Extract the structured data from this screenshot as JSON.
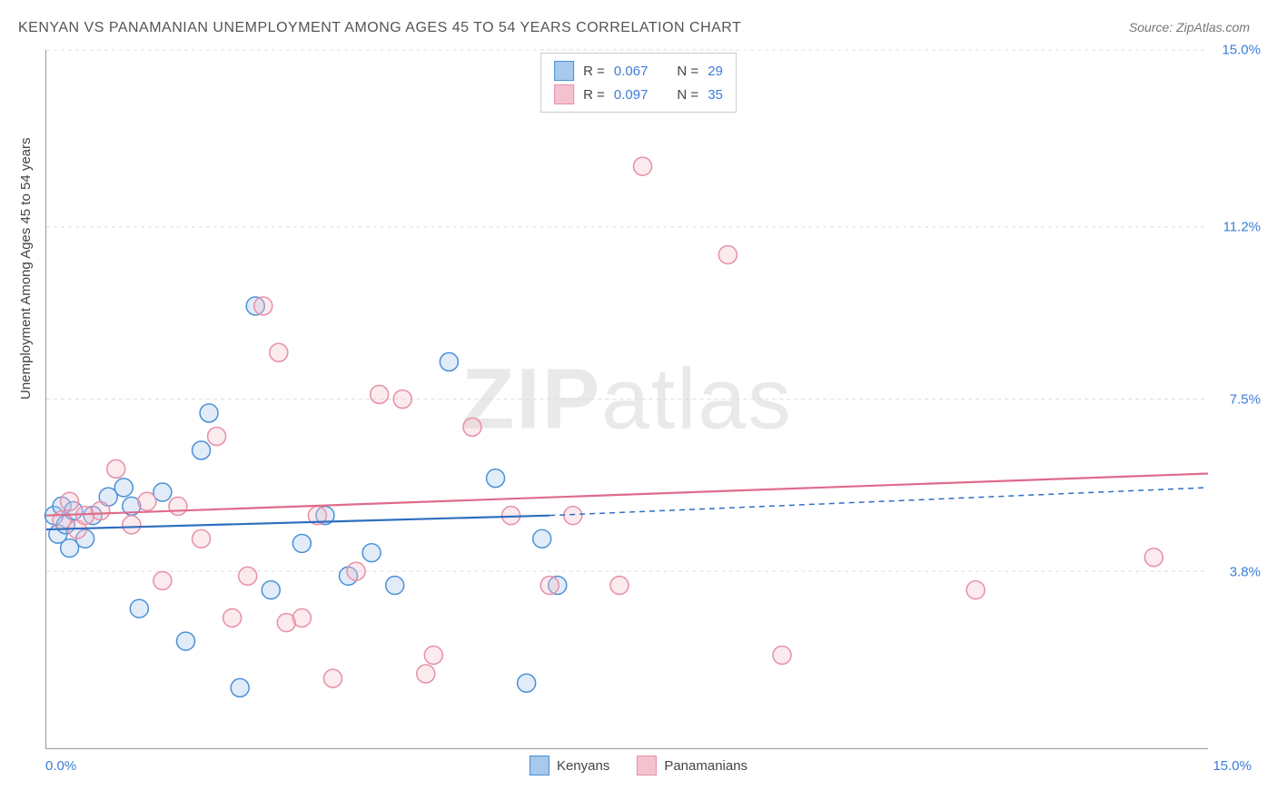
{
  "title": "KENYAN VS PANAMANIAN UNEMPLOYMENT AMONG AGES 45 TO 54 YEARS CORRELATION CHART",
  "source": "Source: ZipAtlas.com",
  "watermark_bold": "ZIP",
  "watermark_light": "atlas",
  "y_axis_label": "Unemployment Among Ages 45 to 54 years",
  "chart": {
    "type": "scatter",
    "xlim": [
      0,
      15
    ],
    "ylim": [
      0,
      15
    ],
    "x_ticks": {
      "min_label": "0.0%",
      "max_label": "15.0%"
    },
    "y_ticks": [
      {
        "value": 15.0,
        "label": "15.0%"
      },
      {
        "value": 11.2,
        "label": "11.2%"
      },
      {
        "value": 7.5,
        "label": "7.5%"
      },
      {
        "value": 3.8,
        "label": "3.8%"
      }
    ],
    "grid_color": "#dddddd",
    "axis_color": "#999999",
    "background_color": "#ffffff",
    "marker_radius": 10,
    "marker_fill_opacity": 0.35,
    "marker_stroke_width": 1.5,
    "line_width": 2.2,
    "series": [
      {
        "name": "Kenyans",
        "color_stroke": "#4a90d9",
        "color_fill": "#a8c8ec",
        "line_color": "#2f6fc0",
        "R": "0.067",
        "N": "29",
        "regression": {
          "x1": 0,
          "y1": 4.7,
          "x2": 6.5,
          "y2": 5.0,
          "x2_dash": 15,
          "y2_dash": 5.6
        },
        "points": [
          {
            "x": 0.1,
            "y": 5.0
          },
          {
            "x": 0.15,
            "y": 4.6
          },
          {
            "x": 0.2,
            "y": 5.2
          },
          {
            "x": 0.25,
            "y": 4.8
          },
          {
            "x": 0.3,
            "y": 4.3
          },
          {
            "x": 0.35,
            "y": 5.1
          },
          {
            "x": 0.5,
            "y": 4.5
          },
          {
            "x": 0.6,
            "y": 5.0
          },
          {
            "x": 0.8,
            "y": 5.4
          },
          {
            "x": 1.0,
            "y": 5.6
          },
          {
            "x": 1.1,
            "y": 5.2
          },
          {
            "x": 1.2,
            "y": 3.0
          },
          {
            "x": 1.5,
            "y": 5.5
          },
          {
            "x": 1.8,
            "y": 2.3
          },
          {
            "x": 2.0,
            "y": 6.4
          },
          {
            "x": 2.1,
            "y": 7.2
          },
          {
            "x": 2.5,
            "y": 1.3
          },
          {
            "x": 2.7,
            "y": 9.5
          },
          {
            "x": 2.9,
            "y": 3.4
          },
          {
            "x": 3.3,
            "y": 4.4
          },
          {
            "x": 3.6,
            "y": 5.0
          },
          {
            "x": 3.9,
            "y": 3.7
          },
          {
            "x": 4.2,
            "y": 4.2
          },
          {
            "x": 4.5,
            "y": 3.5
          },
          {
            "x": 5.2,
            "y": 8.3
          },
          {
            "x": 5.8,
            "y": 5.8
          },
          {
            "x": 6.2,
            "y": 1.4
          },
          {
            "x": 6.4,
            "y": 4.5
          },
          {
            "x": 6.6,
            "y": 3.5
          }
        ]
      },
      {
        "name": "Panamanians",
        "color_stroke": "#e78fa6",
        "color_fill": "#f4c2ce",
        "line_color": "#e06b8b",
        "R": "0.097",
        "N": "35",
        "regression": {
          "x1": 0,
          "y1": 5.0,
          "x2": 15,
          "y2": 5.9
        },
        "points": [
          {
            "x": 0.2,
            "y": 4.9
          },
          {
            "x": 0.3,
            "y": 5.3
          },
          {
            "x": 0.4,
            "y": 4.7
          },
          {
            "x": 0.5,
            "y": 5.0
          },
          {
            "x": 0.7,
            "y": 5.1
          },
          {
            "x": 0.9,
            "y": 6.0
          },
          {
            "x": 1.1,
            "y": 4.8
          },
          {
            "x": 1.3,
            "y": 5.3
          },
          {
            "x": 1.5,
            "y": 3.6
          },
          {
            "x": 1.7,
            "y": 5.2
          },
          {
            "x": 2.0,
            "y": 4.5
          },
          {
            "x": 2.2,
            "y": 6.7
          },
          {
            "x": 2.4,
            "y": 2.8
          },
          {
            "x": 2.6,
            "y": 3.7
          },
          {
            "x": 2.8,
            "y": 9.5
          },
          {
            "x": 3.0,
            "y": 8.5
          },
          {
            "x": 3.1,
            "y": 2.7
          },
          {
            "x": 3.3,
            "y": 2.8
          },
          {
            "x": 3.5,
            "y": 5.0
          },
          {
            "x": 3.7,
            "y": 1.5
          },
          {
            "x": 4.0,
            "y": 3.8
          },
          {
            "x": 4.3,
            "y": 7.6
          },
          {
            "x": 4.6,
            "y": 7.5
          },
          {
            "x": 4.9,
            "y": 1.6
          },
          {
            "x": 5.0,
            "y": 2.0
          },
          {
            "x": 5.5,
            "y": 6.9
          },
          {
            "x": 6.0,
            "y": 5.0
          },
          {
            "x": 6.5,
            "y": 3.5
          },
          {
            "x": 6.8,
            "y": 5.0
          },
          {
            "x": 7.4,
            "y": 3.5
          },
          {
            "x": 7.7,
            "y": 12.5
          },
          {
            "x": 8.8,
            "y": 10.6
          },
          {
            "x": 9.5,
            "y": 2.0
          },
          {
            "x": 12.0,
            "y": 3.4
          },
          {
            "x": 14.3,
            "y": 4.1
          }
        ]
      }
    ]
  },
  "legend_top": {
    "items": [
      {
        "swatch_fill": "#a8c8ec",
        "swatch_stroke": "#4a90d9",
        "r_label": "R =",
        "r_val": "0.067",
        "n_label": "N =",
        "n_val": "29"
      },
      {
        "swatch_fill": "#f4c2ce",
        "swatch_stroke": "#e78fa6",
        "r_label": "R =",
        "r_val": "0.097",
        "n_label": "N =",
        "n_val": "35"
      }
    ]
  },
  "legend_bottom": {
    "items": [
      {
        "swatch_fill": "#a8c8ec",
        "swatch_stroke": "#4a90d9",
        "label": "Kenyans"
      },
      {
        "swatch_fill": "#f4c2ce",
        "swatch_stroke": "#e78fa6",
        "label": "Panamanians"
      }
    ]
  }
}
